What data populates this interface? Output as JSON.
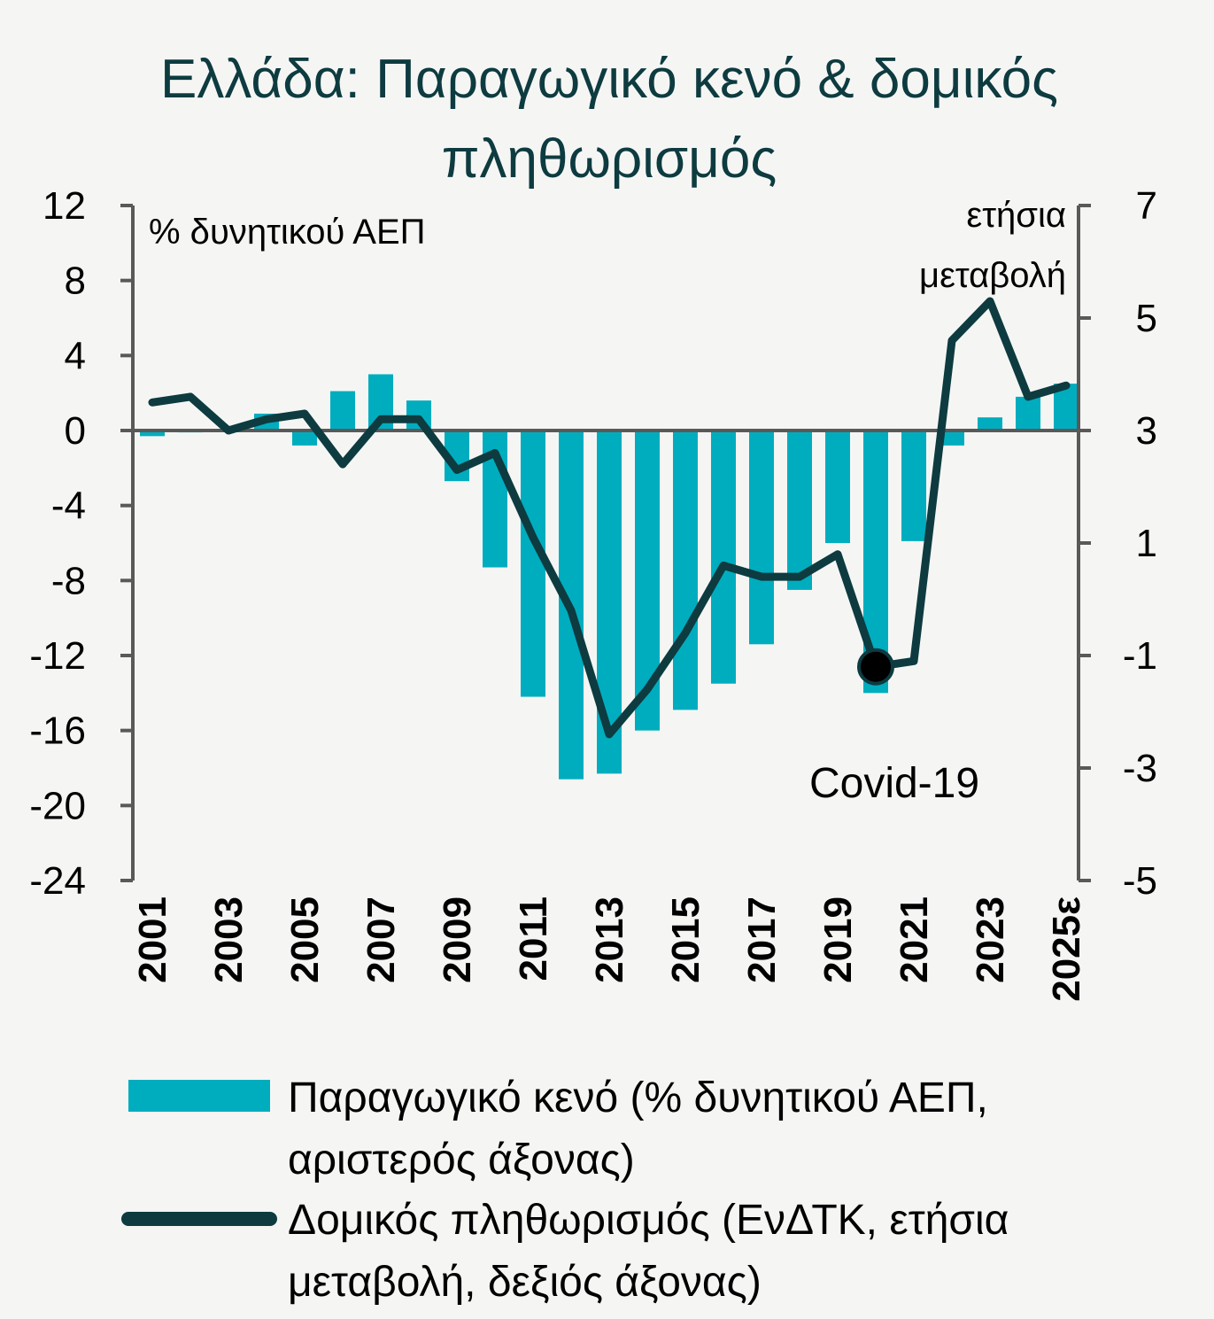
{
  "chart_data": {
    "type": "bar+line",
    "title_lines": [
      "Ελλάδα: Παραγωγικό κενό & δομικός",
      "πληθωρισμός"
    ],
    "left_axis": {
      "unit_label": "% δυνητικού ΑΕΠ",
      "ylim": [
        -24,
        12
      ],
      "ticks": [
        12,
        8,
        4,
        0,
        -4,
        -8,
        -12,
        -16,
        -20,
        -24
      ]
    },
    "right_axis": {
      "unit_label_lines": [
        "ετήσια",
        "μεταβολή"
      ],
      "ylim": [
        -5,
        7
      ],
      "ticks": [
        7,
        5,
        3,
        1,
        -1,
        -3,
        -5
      ]
    },
    "x": [
      "2001",
      "2002",
      "2003",
      "2004",
      "2005",
      "2006",
      "2007",
      "2008",
      "2009",
      "2010",
      "2011",
      "2012",
      "2013",
      "2014",
      "2015",
      "2016",
      "2017",
      "2018",
      "2019",
      "2020",
      "2021",
      "2022",
      "2023",
      "2024",
      "2025ε"
    ],
    "x_tick_labels": [
      "2001",
      "2003",
      "2005",
      "2007",
      "2009",
      "2011",
      "2013",
      "2015",
      "2017",
      "2019",
      "2021",
      "2023",
      "2025ε"
    ],
    "series": [
      {
        "name": "Παραγωγικό κενό (% δυνητικού ΑΕΠ, αριστερός άξονας)",
        "legend_lines": [
          "Παραγωγικό κενό (% δυνητικού ΑΕΠ,",
          "αριστερός άξονας)"
        ],
        "type": "bar",
        "axis": "left",
        "color": "#00adbf",
        "values": [
          -0.3,
          -0.1,
          0.0,
          0.9,
          -0.8,
          2.1,
          3.0,
          1.6,
          -2.7,
          -7.3,
          -14.2,
          -18.6,
          -18.3,
          -16.0,
          -14.9,
          -13.5,
          -11.4,
          -8.5,
          -6.0,
          -14.0,
          -5.9,
          -0.8,
          0.7,
          1.8,
          2.5
        ]
      },
      {
        "name": "Δομικός πληθωρισμός (ΕνΔΤΚ, ετήσια μεταβολή, δεξιός άξονας)",
        "legend_lines": [
          "Δομικός πληθωρισμός (ΕνΔΤΚ, ετήσια",
          "μεταβολή, δεξιός άξονας)"
        ],
        "type": "line",
        "axis": "right",
        "color": "#0d3b40",
        "values": [
          3.5,
          3.6,
          3.0,
          3.2,
          3.3,
          2.4,
          3.2,
          3.2,
          2.3,
          2.6,
          1.1,
          -0.2,
          -2.4,
          -1.6,
          -0.6,
          0.6,
          0.4,
          0.4,
          0.8,
          -1.2,
          -1.1,
          4.6,
          5.3,
          3.6,
          3.8
        ]
      }
    ],
    "annotations": [
      {
        "text": "Covid-19",
        "x": "2020",
        "marker_value": -1.2
      }
    ],
    "colors": {
      "bar": "#00adbf",
      "line": "#0d3b40",
      "axis": "#595959",
      "title": "#0d3b40"
    }
  }
}
